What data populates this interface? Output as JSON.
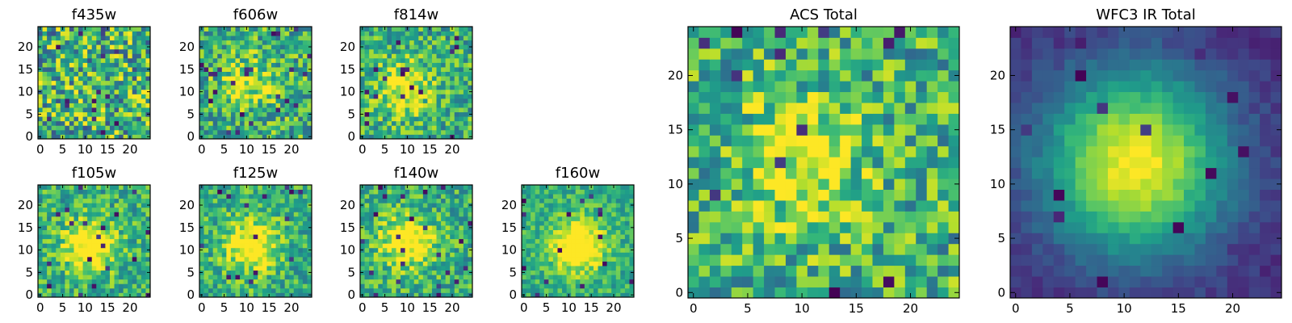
{
  "chart_data": [
    {
      "type": "heatmap",
      "title": "f435w",
      "xticks": [
        "0",
        "5",
        "10",
        "15",
        "20"
      ],
      "yticks": [
        "0",
        "5",
        "10",
        "15",
        "20"
      ],
      "grid_size": [
        25,
        25
      ],
      "colormap": "viridis",
      "peak": [
        10,
        11
      ],
      "signal": 0.05,
      "noise": 0.55,
      "seed": 11
    },
    {
      "type": "heatmap",
      "title": "f606w",
      "xticks": [
        "0",
        "5",
        "10",
        "15",
        "20"
      ],
      "yticks": [
        "0",
        "5",
        "10",
        "15",
        "20"
      ],
      "grid_size": [
        25,
        25
      ],
      "colormap": "viridis",
      "peak": [
        10,
        12
      ],
      "signal": 0.45,
      "noise": 0.42,
      "seed": 23
    },
    {
      "type": "heatmap",
      "title": "f814w",
      "xticks": [
        "0",
        "5",
        "10",
        "15",
        "20"
      ],
      "yticks": [
        "0",
        "5",
        "10",
        "15",
        "20"
      ],
      "grid_size": [
        25,
        25
      ],
      "colormap": "viridis",
      "peak": [
        9,
        11
      ],
      "signal": 0.6,
      "noise": 0.38,
      "seed": 37
    },
    {
      "type": "heatmap",
      "title": "f105w",
      "xticks": [
        "0",
        "5",
        "10",
        "15",
        "20"
      ],
      "yticks": [
        "0",
        "5",
        "10",
        "15",
        "20"
      ],
      "grid_size": [
        25,
        25
      ],
      "colormap": "viridis",
      "peak": [
        11,
        11
      ],
      "signal": 0.75,
      "noise": 0.33,
      "seed": 41
    },
    {
      "type": "heatmap",
      "title": "f125w",
      "xticks": [
        "0",
        "5",
        "10",
        "15",
        "20"
      ],
      "yticks": [
        "0",
        "5",
        "10",
        "15",
        "20"
      ],
      "grid_size": [
        25,
        25
      ],
      "colormap": "viridis",
      "peak": [
        11,
        11
      ],
      "signal": 0.75,
      "noise": 0.33,
      "seed": 53
    },
    {
      "type": "heatmap",
      "title": "f140w",
      "xticks": [
        "0",
        "5",
        "10",
        "15",
        "20"
      ],
      "yticks": [
        "0",
        "5",
        "10",
        "15",
        "20"
      ],
      "grid_size": [
        25,
        25
      ],
      "colormap": "viridis",
      "peak": [
        10,
        12
      ],
      "signal": 0.75,
      "noise": 0.33,
      "seed": 67
    },
    {
      "type": "heatmap",
      "title": "f160w",
      "xticks": [
        "0",
        "5",
        "10",
        "15",
        "20"
      ],
      "yticks": [
        "0",
        "5",
        "10",
        "15",
        "20"
      ],
      "grid_size": [
        25,
        25
      ],
      "colormap": "viridis",
      "peak": [
        12,
        11
      ],
      "signal": 0.85,
      "noise": 0.25,
      "seed": 79
    },
    {
      "type": "heatmap",
      "title": "ACS Total",
      "xticks": [
        "0",
        "5",
        "10",
        "15",
        "20"
      ],
      "yticks": [
        "0",
        "5",
        "10",
        "15",
        "20"
      ],
      "grid_size": [
        25,
        25
      ],
      "colormap": "viridis",
      "peak": [
        10,
        12
      ],
      "signal": 0.5,
      "noise": 0.42,
      "seed": 97
    },
    {
      "type": "heatmap",
      "title": "WFC3 IR Total",
      "xticks": [
        "0",
        "5",
        "10",
        "15",
        "20"
      ],
      "yticks": [
        "0",
        "5",
        "10",
        "15",
        "20"
      ],
      "grid_size": [
        25,
        25
      ],
      "colormap": "viridis",
      "peak": [
        11,
        12
      ],
      "signal": 1.0,
      "noise": 0.12,
      "seed": 101
    }
  ]
}
